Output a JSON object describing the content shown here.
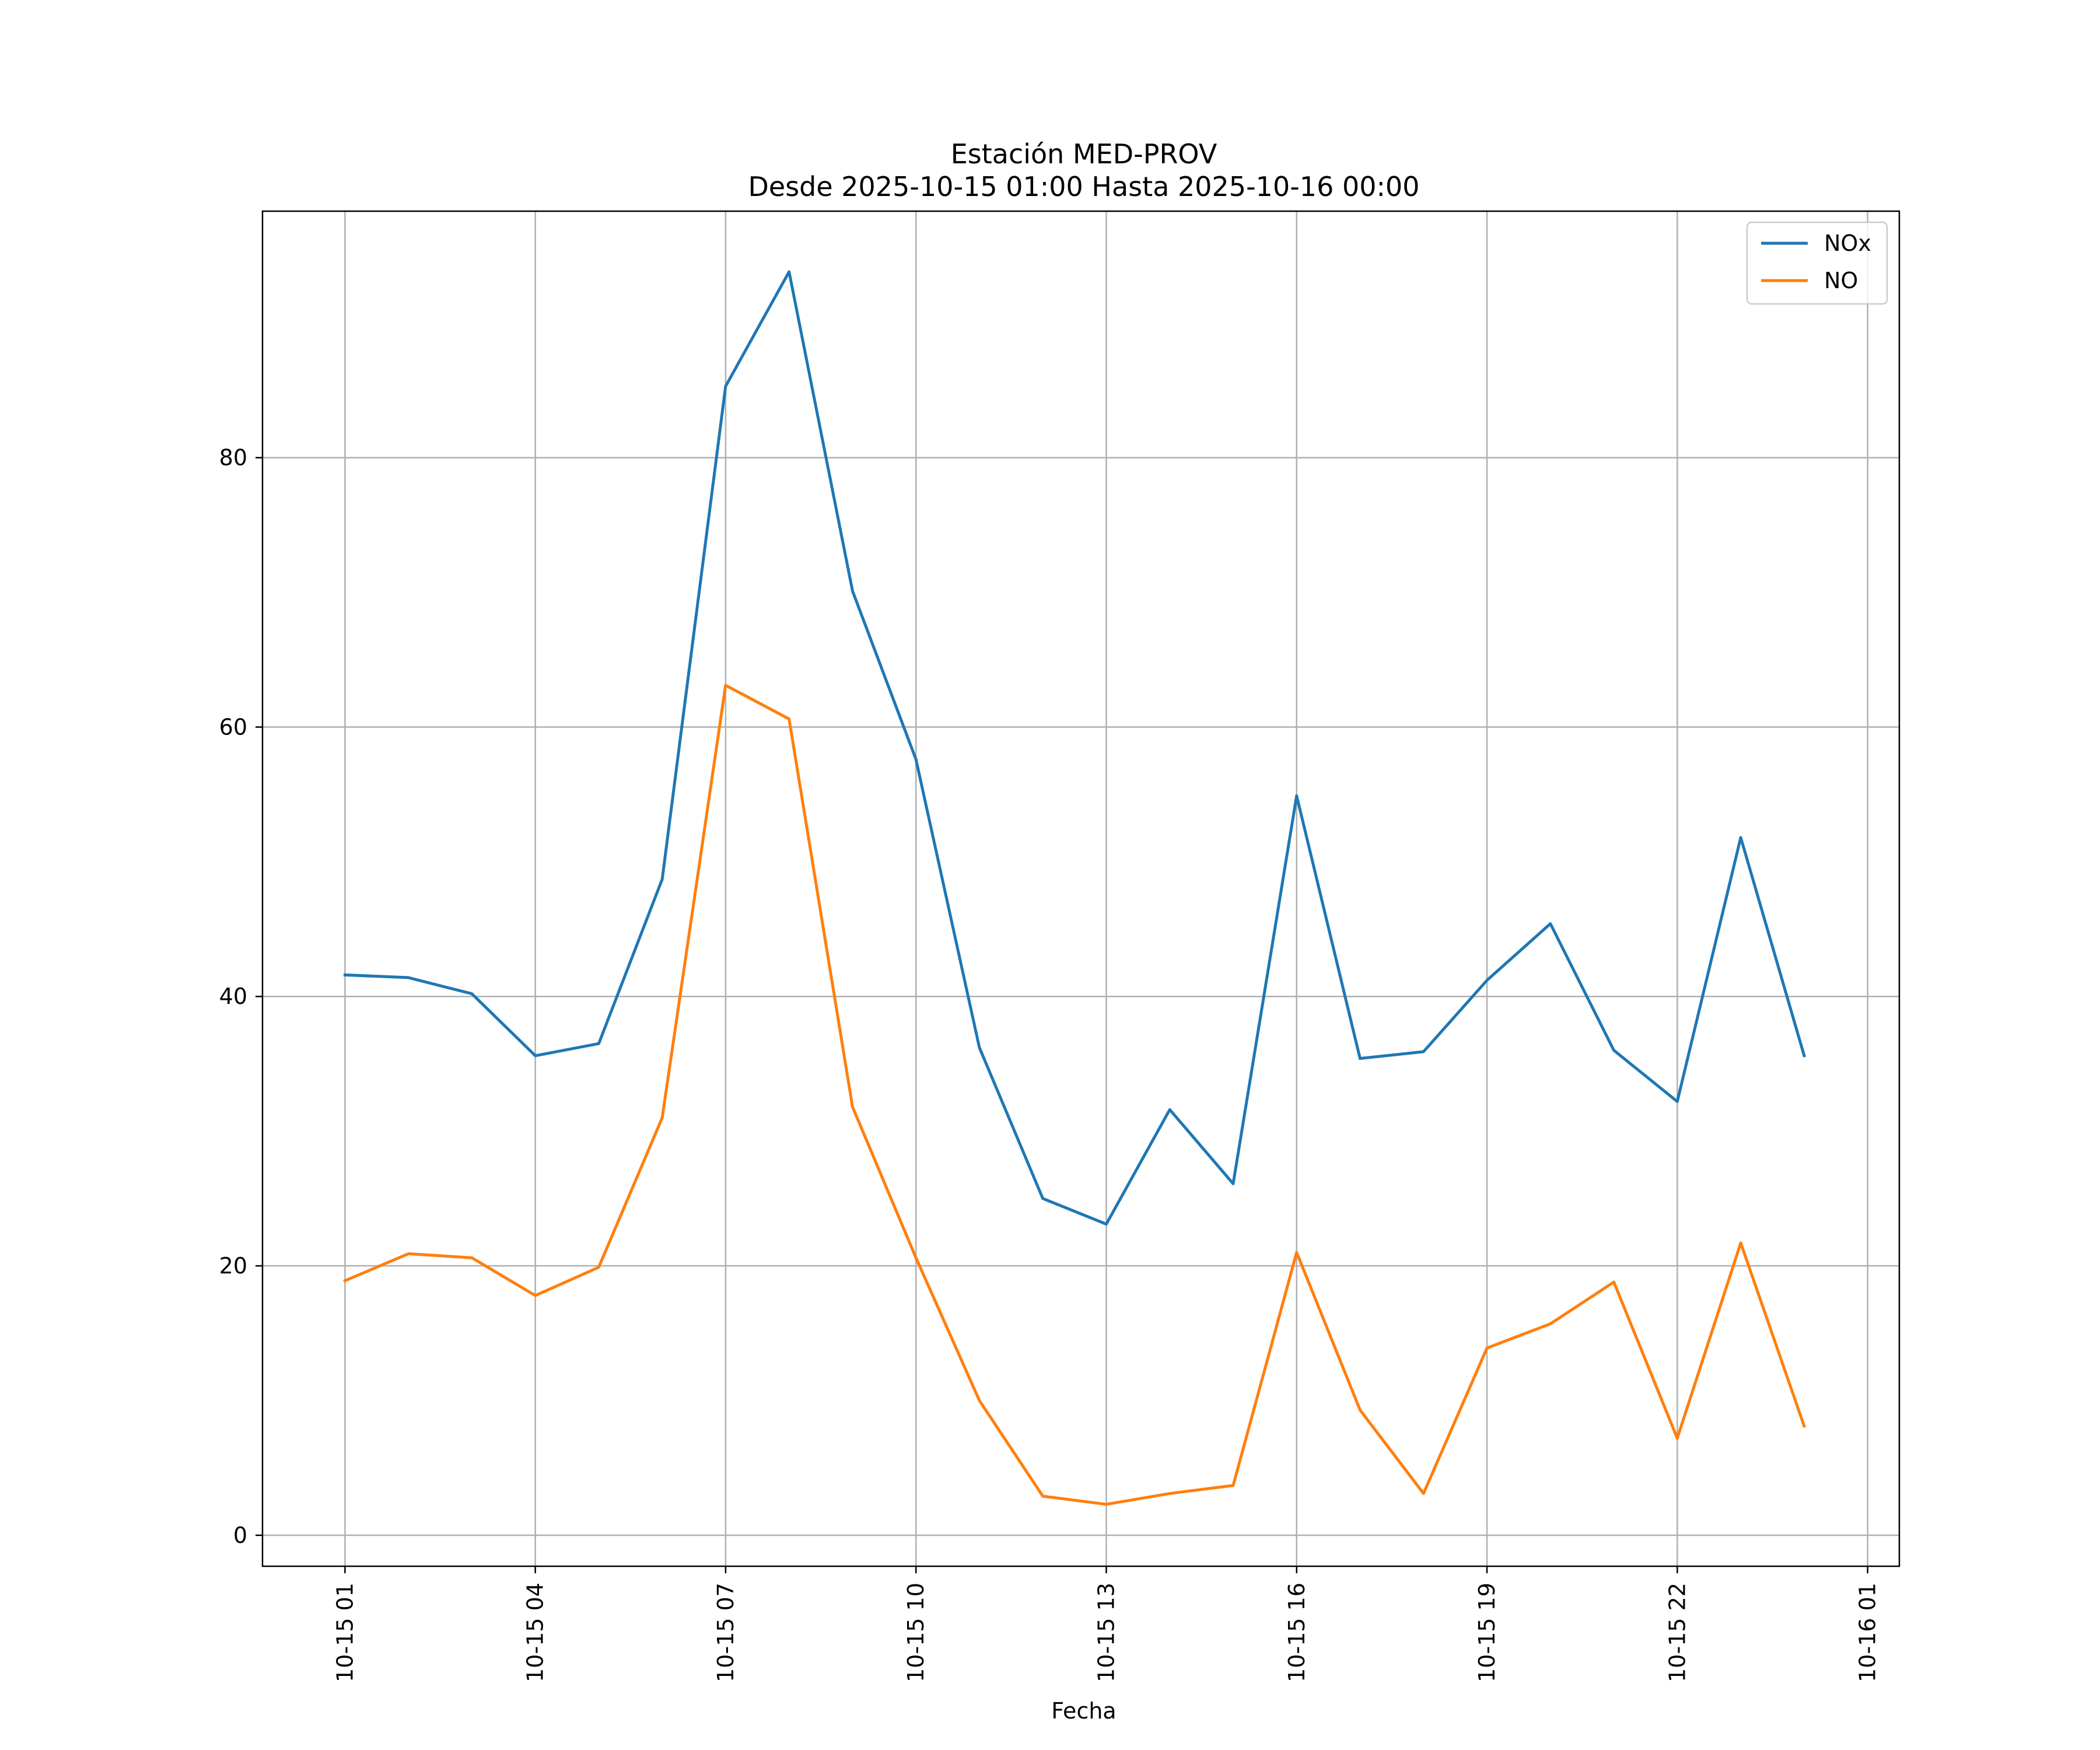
{
  "chart_data": {
    "type": "line",
    "title": "Estación MED-PROV",
    "subtitle": "Desde 2025-10-15 01:00 Hasta 2025-10-16 00:00",
    "xlabel": "Fecha",
    "ylabel": "",
    "x_hours": [
      1,
      2,
      3,
      4,
      5,
      6,
      7,
      8,
      9,
      10,
      11,
      12,
      13,
      14,
      15,
      16,
      17,
      18,
      19,
      20,
      21,
      22,
      23,
      24
    ],
    "xlim": [
      -0.3,
      25.5
    ],
    "ylim": [
      -2.3,
      98.3
    ],
    "x_ticks": [
      {
        "hour": 1,
        "label": "10-15 01"
      },
      {
        "hour": 4,
        "label": "10-15 04"
      },
      {
        "hour": 7,
        "label": "10-15 07"
      },
      {
        "hour": 10,
        "label": "10-15 10"
      },
      {
        "hour": 13,
        "label": "10-15 13"
      },
      {
        "hour": 16,
        "label": "10-15 16"
      },
      {
        "hour": 19,
        "label": "10-15 19"
      },
      {
        "hour": 22,
        "label": "10-15 22"
      },
      {
        "hour": 25,
        "label": "10-16 01"
      }
    ],
    "y_ticks": [
      {
        "value": 0,
        "label": "0"
      },
      {
        "value": 20,
        "label": "20"
      },
      {
        "value": 40,
        "label": "40"
      },
      {
        "value": 60,
        "label": "60"
      },
      {
        "value": 80,
        "label": "80"
      }
    ],
    "grid": true,
    "legend_position": "top-right",
    "series": [
      {
        "name": "NOx",
        "color": "#1f77b4",
        "values": [
          41.6,
          41.4,
          40.2,
          35.6,
          36.5,
          48.7,
          85.3,
          93.8,
          70.1,
          57.6,
          36.2,
          25.0,
          23.1,
          31.6,
          26.1,
          54.9,
          35.4,
          35.9,
          41.2,
          45.4,
          36.0,
          32.2,
          51.8,
          35.6
        ]
      },
      {
        "name": "NO",
        "color": "#ff7f0e",
        "values": [
          18.9,
          20.9,
          20.6,
          17.8,
          19.9,
          31.0,
          63.1,
          60.6,
          31.8,
          20.6,
          10.0,
          2.9,
          2.3,
          3.1,
          3.7,
          21.0,
          9.3,
          3.1,
          13.9,
          15.7,
          18.8,
          7.2,
          21.7,
          8.1
        ]
      }
    ]
  }
}
